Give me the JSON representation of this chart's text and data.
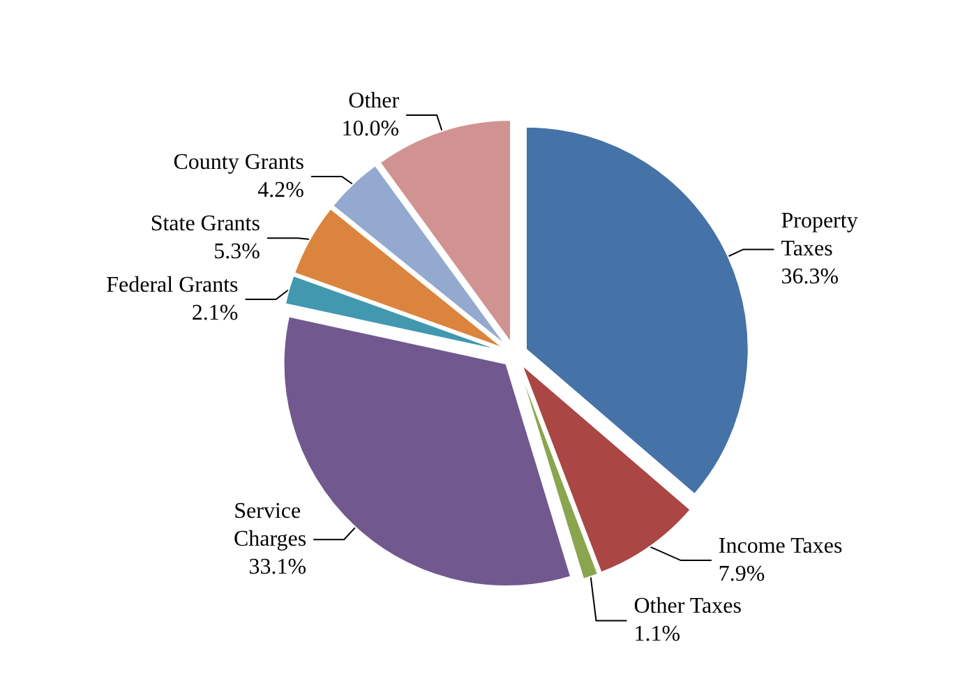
{
  "chart_data": {
    "type": "pie",
    "categories": [
      "Property Taxes",
      "Income Taxes",
      "Other Taxes",
      "Service Charges",
      "Federal Grants",
      "State Grants",
      "County Grants",
      "Other"
    ],
    "values": [
      36.3,
      7.9,
      1.1,
      33.1,
      2.1,
      5.3,
      4.2,
      10.0
    ],
    "value_labels": [
      "36.3%",
      "7.9%",
      "1.1%",
      "33.1%",
      "2.1%",
      "5.3%",
      "4.2%",
      "10.0%"
    ],
    "colors": [
      "#4572a7",
      "#aa4643",
      "#89a54e",
      "#71588f",
      "#4198af",
      "#db843d",
      "#93a9cf",
      "#d09392"
    ],
    "legend": false
  }
}
